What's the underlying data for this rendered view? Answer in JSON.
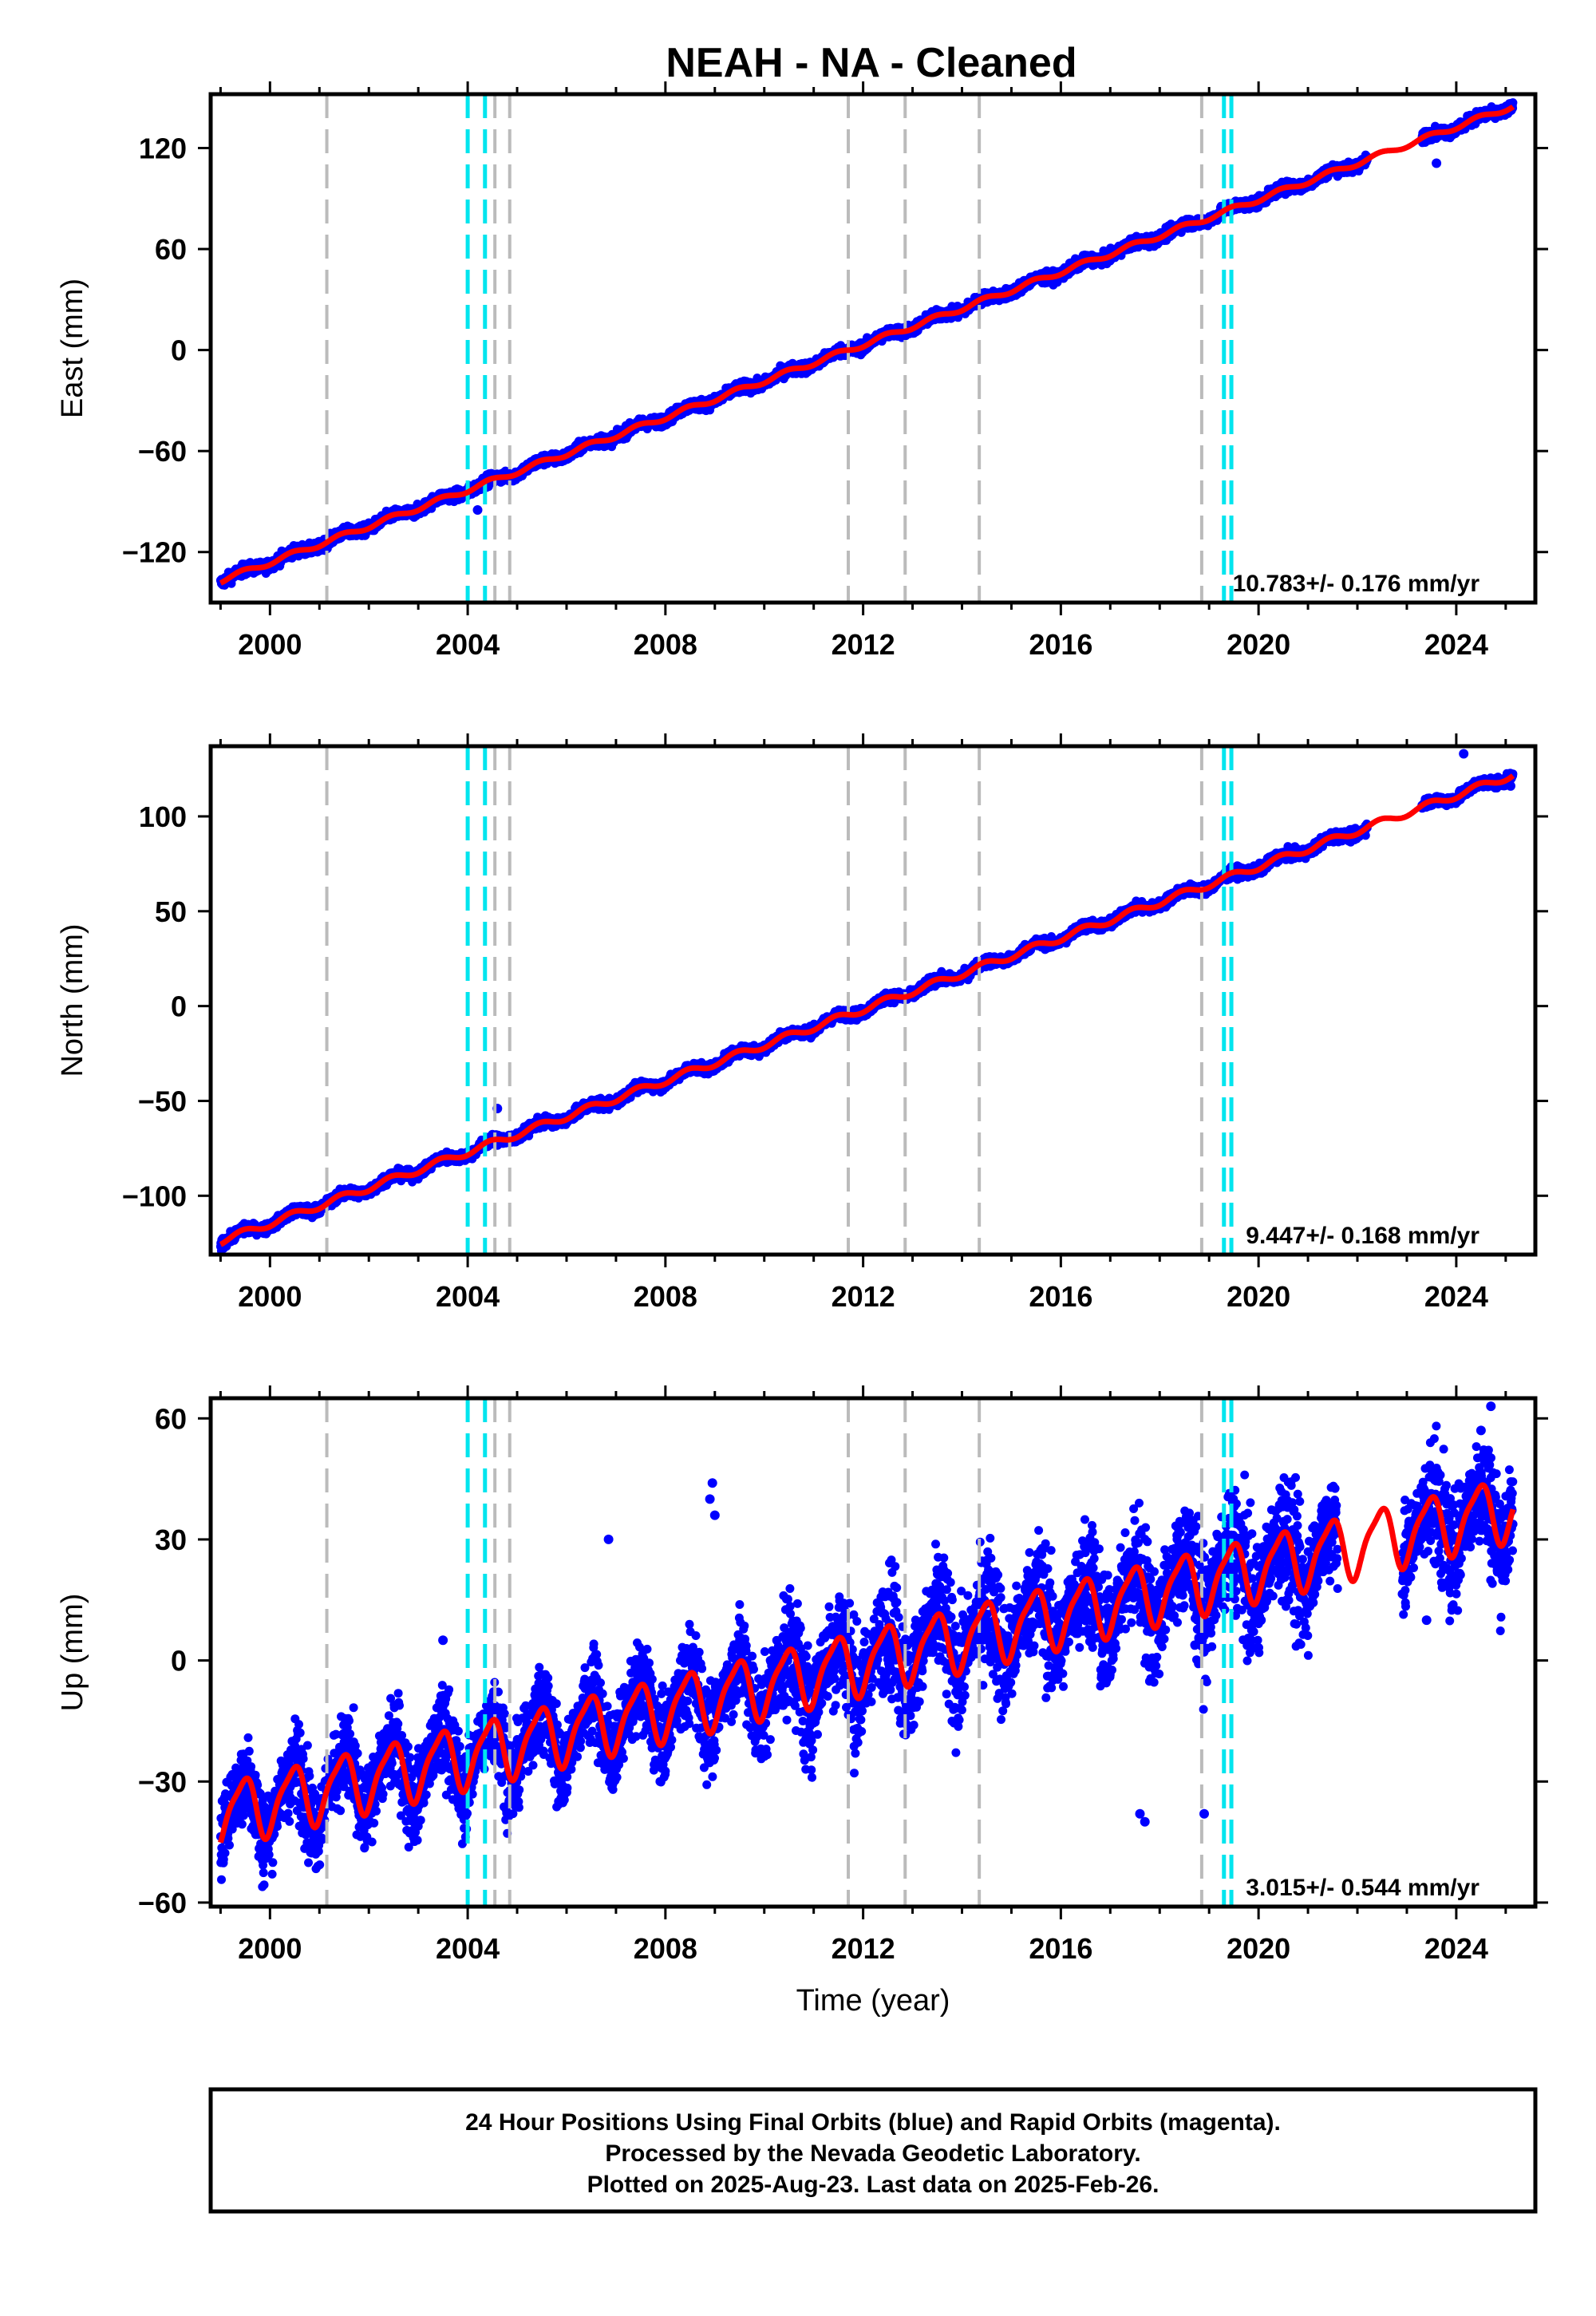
{
  "title": "NEAH  - NA - Cleaned",
  "footer": {
    "line1": "24 Hour Positions Using Final Orbits (blue) and Rapid Orbits (magenta).",
    "line2": "Processed by the Nevada Geodetic Laboratory.",
    "line3": "Plotted on 2025-Aug-23. Last data on 2025-Feb-26."
  },
  "colors": {
    "data": "#0000ff",
    "model": "#ff0000",
    "equipment_change": "#bbbbbb",
    "earthquake": "#00e5ee"
  },
  "chart_data": [
    {
      "type": "scatter",
      "panel": "east",
      "ylabel": "East (mm)",
      "xlabel": "",
      "xlim": [
        1998.8,
        2025.6
      ],
      "ylim": [
        -150,
        152
      ],
      "yticks": [
        -120,
        -60,
        0,
        60,
        120
      ],
      "xticks": [
        2000,
        2004,
        2008,
        2012,
        2016,
        2020,
        2024
      ],
      "rate_label": "10.783+/- 0.176 mm/yr",
      "start_year": 1999.0,
      "end_year": 2025.15,
      "start_value": -137,
      "end_value": 145,
      "seasonal_amplitude": 1.5,
      "noise": 3,
      "outliers": [
        [
          2004.2,
          -95
        ],
        [
          2023.6,
          111
        ],
        [
          2009.0,
          -28
        ]
      ],
      "gray_lines": [
        2001.15,
        2004.55,
        2004.85,
        2011.7,
        2012.85,
        2014.35,
        2018.85
      ],
      "cyan_lines": [
        2004.0,
        2004.35,
        2019.3,
        2019.45
      ]
    },
    {
      "type": "scatter",
      "panel": "north",
      "ylabel": "North (mm)",
      "xlabel": "",
      "xlim": [
        1998.8,
        2025.6
      ],
      "ylim": [
        -131,
        137
      ],
      "yticks": [
        -100,
        -50,
        0,
        50,
        100
      ],
      "xticks": [
        2000,
        2004,
        2008,
        2012,
        2016,
        2020,
        2024
      ],
      "rate_label": "9.447+/- 0.168 mm/yr",
      "start_year": 1999.0,
      "end_year": 2025.15,
      "start_value": -124,
      "end_value": 122,
      "seasonal_amplitude": 1.8,
      "noise": 2.5,
      "outliers": [
        [
          2004.6,
          -54
        ],
        [
          2024.15,
          133
        ],
        [
          2025.1,
          116
        ]
      ],
      "gray_lines": [
        2001.15,
        2004.55,
        2004.85,
        2011.7,
        2012.85,
        2014.35,
        2018.85
      ],
      "cyan_lines": [
        2004.0,
        2004.35,
        2019.3,
        2019.45
      ]
    },
    {
      "type": "scatter",
      "panel": "up",
      "ylabel": "Up (mm)",
      "xlabel": "Time (year)",
      "xlim": [
        1998.8,
        2025.6
      ],
      "ylim": [
        -61,
        65
      ],
      "yticks": [
        -60,
        -30,
        0,
        30,
        60
      ],
      "xticks": [
        2000,
        2004,
        2008,
        2012,
        2016,
        2020,
        2024
      ],
      "rate_label": "3.015+/- 0.544 mm/yr",
      "start_year": 1999.0,
      "end_year": 2025.15,
      "start_value": -38,
      "end_value": 38,
      "seasonal_amplitude": 7.5,
      "noise": 6,
      "outliers": [
        [
          2008.95,
          44
        ],
        [
          2008.9,
          40
        ],
        [
          2009.0,
          36
        ],
        [
          2006.85,
          30
        ],
        [
          2017.6,
          -38
        ],
        [
          2017.7,
          -40
        ],
        [
          2018.9,
          -38
        ],
        [
          2003.5,
          5
        ],
        [
          2024.7,
          63
        ],
        [
          2024.5,
          57
        ],
        [
          2023.4,
          10
        ],
        [
          2020.05,
          10
        ]
      ],
      "gray_lines": [
        2001.15,
        2004.55,
        2004.85,
        2011.7,
        2012.85,
        2014.35,
        2018.85
      ],
      "cyan_lines": [
        2004.0,
        2004.35,
        2019.3,
        2019.45
      ]
    }
  ]
}
